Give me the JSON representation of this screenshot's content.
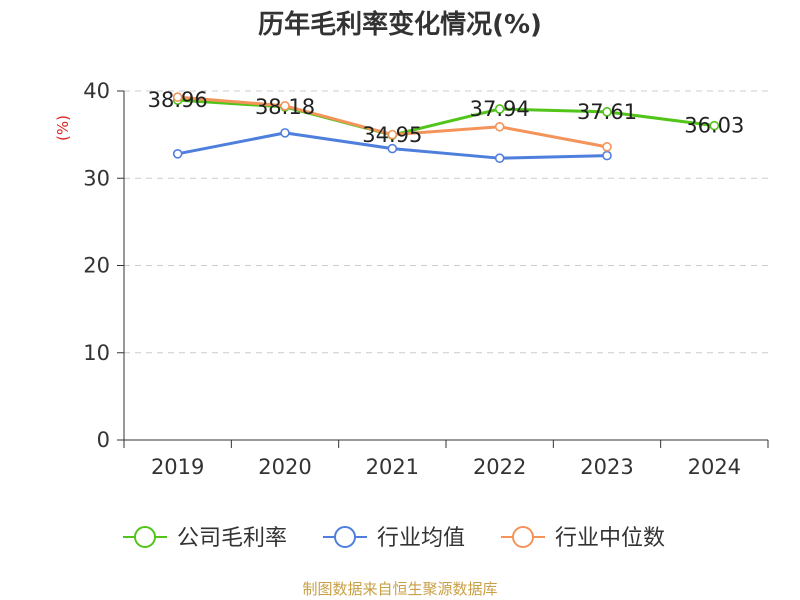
{
  "chart_data": {
    "type": "line",
    "title": "历年毛利率变化情况(%)",
    "ylabel": "(%)",
    "xlabel": "",
    "categories": [
      "2019",
      "2020",
      "2021",
      "2022",
      "2023",
      "2024"
    ],
    "ylim": [
      0,
      40
    ],
    "yticks": [
      0,
      10,
      20,
      30,
      40
    ],
    "grid": true,
    "legend_position": "bottom",
    "series": [
      {
        "name": "公司毛利率",
        "color": "#52c41a",
        "values": [
          38.96,
          38.18,
          34.95,
          37.94,
          37.61,
          36.03
        ],
        "labels": [
          "38.96",
          "38.18",
          "34.95",
          "37.94",
          "37.61",
          "36.03"
        ]
      },
      {
        "name": "行业均值",
        "color": "#4e7fdc",
        "values": [
          32.8,
          35.2,
          33.4,
          32.3,
          32.6,
          null
        ]
      },
      {
        "name": "行业中位数",
        "color": "#f4945a",
        "values": [
          39.3,
          38.3,
          35.0,
          35.9,
          33.6,
          null
        ]
      }
    ]
  },
  "source": "制图数据来自恒生聚源数据库",
  "colors": {
    "label_text": "#222222",
    "axis": "#333333",
    "grid": "#cccccc",
    "ylabel": "#e02020"
  }
}
